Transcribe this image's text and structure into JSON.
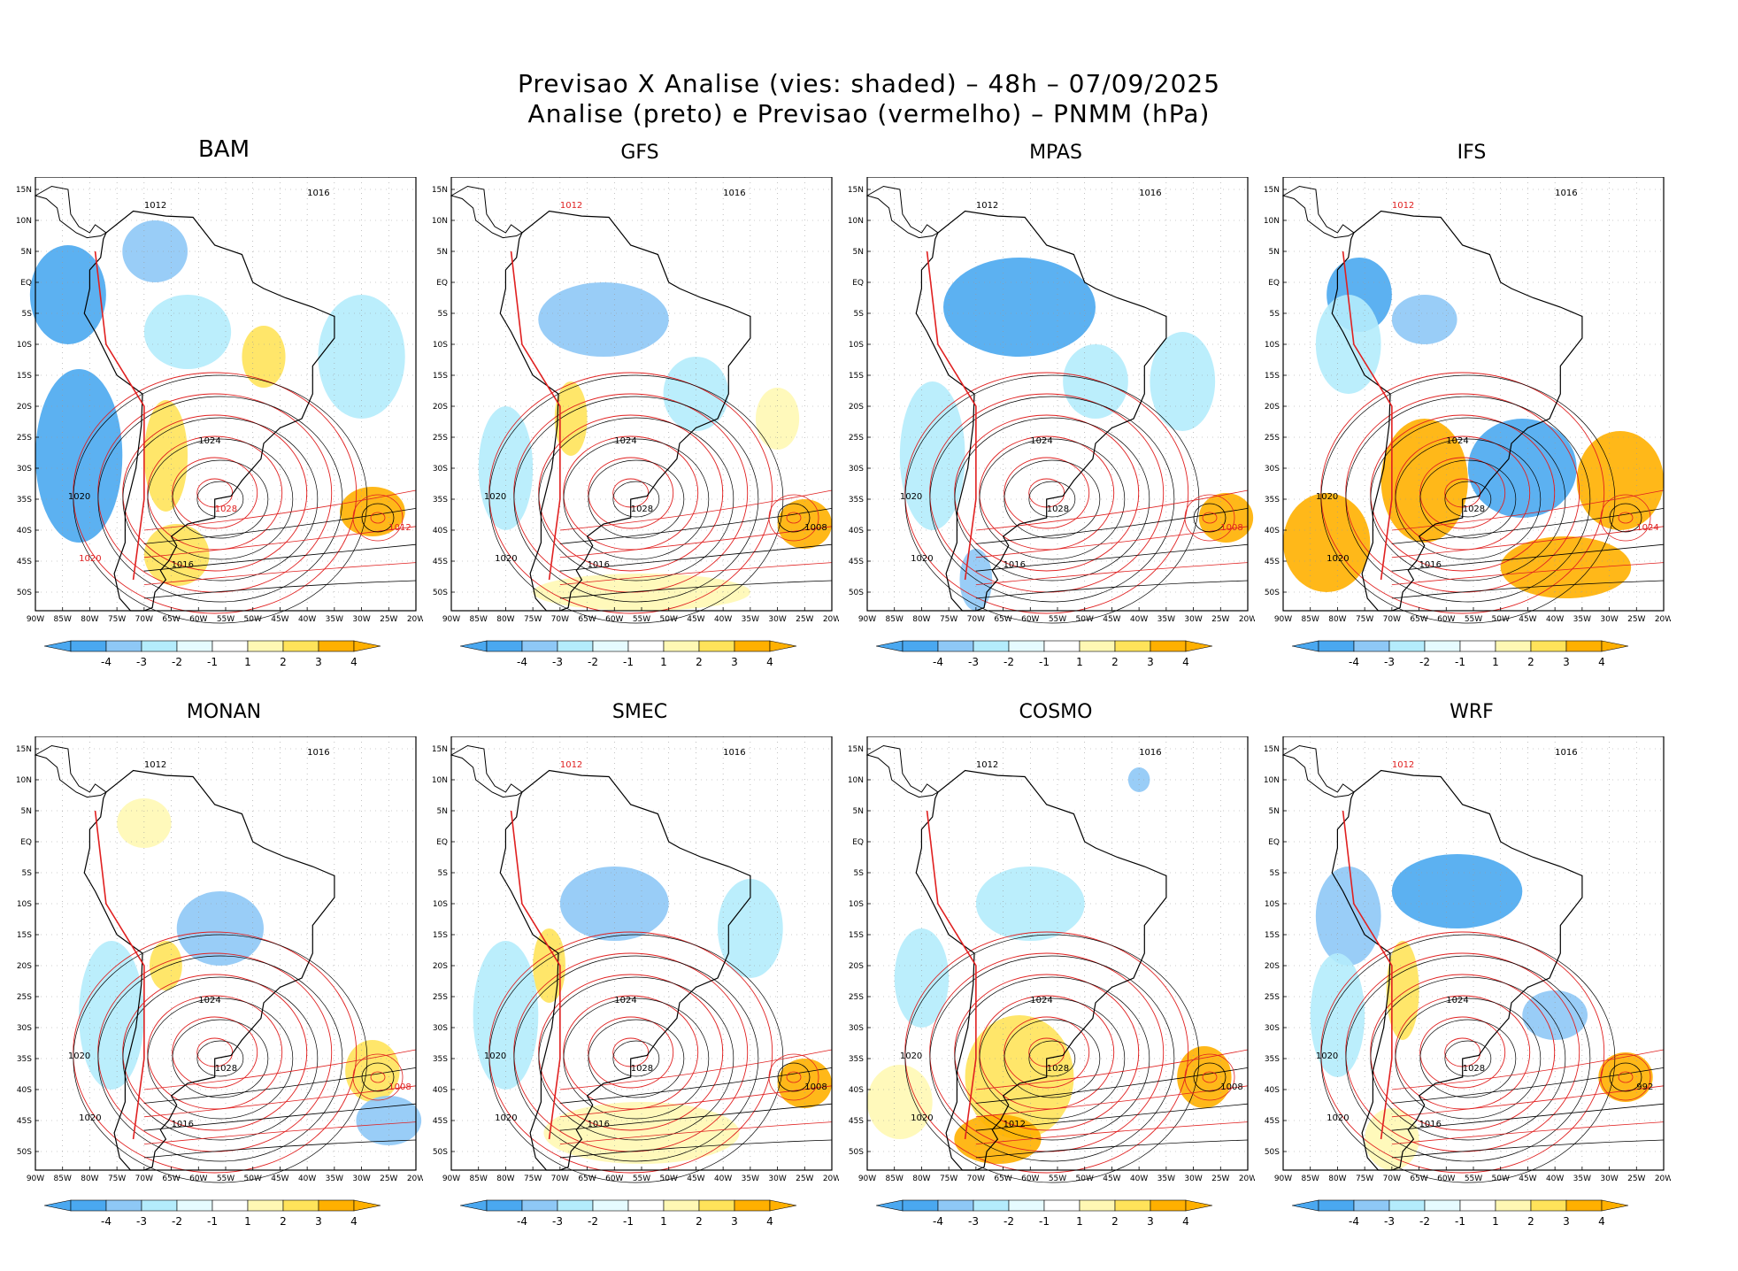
{
  "title": {
    "line1": "Previsao X Analise (vies: shaded) – 48h – 07/09/2025",
    "line2": "Analise (preto) e Previsao (vermelho) – PNMM (hPa)"
  },
  "colors": {
    "neg4": "#4aa8f0",
    "neg3": "#8ec8f6",
    "neg2": "#b4ecfc",
    "neg1": "#e6fbff",
    "pos1": "#ffffff",
    "pos2": "#fff8b4",
    "pos3": "#ffe35a",
    "pos4": "#ffb000",
    "analysis": "#000000",
    "forecast": "#e02020"
  },
  "lat_labels": [
    "15N",
    "10N",
    "5N",
    "EQ",
    "5S",
    "10S",
    "15S",
    "20S",
    "25S",
    "30S",
    "35S",
    "40S",
    "45S",
    "50S"
  ],
  "lon_labels": [
    "90W",
    "85W",
    "80W",
    "75W",
    "70W",
    "65W",
    "60W",
    "55W",
    "50W",
    "45W",
    "40W",
    "35W",
    "30W",
    "25W",
    "20W"
  ],
  "colorbar_labels": [
    "-4",
    "-3",
    "-2",
    "-1",
    "1",
    "2",
    "3",
    "4"
  ],
  "panels": [
    {
      "name": "BAM",
      "labels": [
        {
          "t": "1016",
          "c": "k"
        },
        {
          "t": "1012",
          "c": "k"
        },
        {
          "t": "1020",
          "c": "r"
        },
        {
          "t": "1024",
          "c": "k"
        },
        {
          "t": "1028",
          "c": "r"
        },
        {
          "t": "1012",
          "c": "r"
        },
        {
          "t": "1016",
          "c": "k"
        },
        {
          "t": "1020",
          "c": "k"
        }
      ]
    },
    {
      "name": "GFS",
      "labels": [
        {
          "t": "1016",
          "c": "k"
        },
        {
          "t": "1012",
          "c": "r"
        },
        {
          "t": "1020",
          "c": "k"
        },
        {
          "t": "1024",
          "c": "k"
        },
        {
          "t": "1028",
          "c": "k"
        },
        {
          "t": "1008",
          "c": "k"
        },
        {
          "t": "1016",
          "c": "k"
        },
        {
          "t": "1020",
          "c": "k"
        }
      ]
    },
    {
      "name": "MPAS",
      "labels": [
        {
          "t": "1016",
          "c": "k"
        },
        {
          "t": "1012",
          "c": "k"
        },
        {
          "t": "1020",
          "c": "k"
        },
        {
          "t": "1024",
          "c": "k"
        },
        {
          "t": "1028",
          "c": "k"
        },
        {
          "t": "1008",
          "c": "r"
        },
        {
          "t": "1016",
          "c": "k"
        },
        {
          "t": "1020",
          "c": "k"
        }
      ]
    },
    {
      "name": "IFS",
      "labels": [
        {
          "t": "1016",
          "c": "k"
        },
        {
          "t": "1012",
          "c": "r"
        },
        {
          "t": "1020",
          "c": "k"
        },
        {
          "t": "1024",
          "c": "k"
        },
        {
          "t": "1028",
          "c": "k"
        },
        {
          "t": "1024",
          "c": "r"
        },
        {
          "t": "1016",
          "c": "k"
        },
        {
          "t": "1020",
          "c": "k"
        }
      ]
    },
    {
      "name": "MONAN",
      "labels": [
        {
          "t": "1016",
          "c": "k"
        },
        {
          "t": "1012",
          "c": "k"
        },
        {
          "t": "1020",
          "c": "k"
        },
        {
          "t": "1024",
          "c": "k"
        },
        {
          "t": "1028",
          "c": "k"
        },
        {
          "t": "1008",
          "c": "r"
        },
        {
          "t": "1016",
          "c": "k"
        },
        {
          "t": "1020",
          "c": "k"
        }
      ]
    },
    {
      "name": "SMEC",
      "labels": [
        {
          "t": "1016",
          "c": "k"
        },
        {
          "t": "1012",
          "c": "r"
        },
        {
          "t": "1020",
          "c": "k"
        },
        {
          "t": "1024",
          "c": "k"
        },
        {
          "t": "1028",
          "c": "k"
        },
        {
          "t": "1008",
          "c": "k"
        },
        {
          "t": "1016",
          "c": "k"
        },
        {
          "t": "1020",
          "c": "k"
        }
      ]
    },
    {
      "name": "COSMO",
      "labels": [
        {
          "t": "1016",
          "c": "k"
        },
        {
          "t": "1012",
          "c": "k"
        },
        {
          "t": "1020",
          "c": "k"
        },
        {
          "t": "1024",
          "c": "k"
        },
        {
          "t": "1028",
          "c": "k"
        },
        {
          "t": "1008",
          "c": "k"
        },
        {
          "t": "1012",
          "c": "k"
        },
        {
          "t": "1020",
          "c": "k"
        }
      ]
    },
    {
      "name": "WRF",
      "labels": [
        {
          "t": "1016",
          "c": "k"
        },
        {
          "t": "1012",
          "c": "r"
        },
        {
          "t": "1020",
          "c": "k"
        },
        {
          "t": "1024",
          "c": "k"
        },
        {
          "t": "1028",
          "c": "k"
        },
        {
          "t": "992",
          "c": "k"
        },
        {
          "t": "1016",
          "c": "k"
        },
        {
          "t": "1020",
          "c": "k"
        }
      ]
    }
  ]
}
